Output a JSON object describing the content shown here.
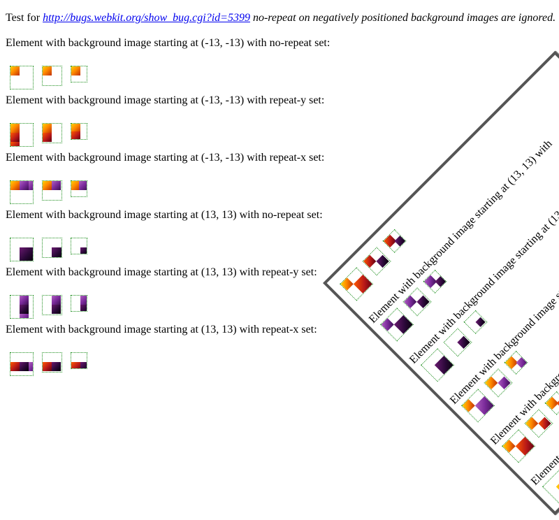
{
  "intro": {
    "prefix": "Test for ",
    "link": "http://bugs.webkit.org/show_bug.cgi?id=5399",
    "suffix": " no-repeat on negatively positioned background images are ignored."
  },
  "cases": [
    {
      "title": "Element with background image starting at (-13, -13) with no-repeat set:"
    },
    {
      "title": "Element with background image starting at (-13, -13) with repeat-y set:"
    },
    {
      "title": "Element with background image starting at (-13, -13) with repeat-x set:"
    },
    {
      "title": "Element with background image starting at (13, 13) with no-repeat set:"
    },
    {
      "title": "Element with background image starting at (13, 13) with repeat-y set:"
    },
    {
      "title": "Element with background image starting at (13, 13) with repeat-x set:"
    }
  ],
  "rotated": {
    "lines": [
      "Element w",
      "Element with backgrou",
      "Element with background image sta",
      "Element with background image starting at (13, 13",
      "Element with background image starting at (13, 13) with"
    ]
  },
  "colors": {
    "border_dotted": "#1f8f1f",
    "link": "#0000ee",
    "frame": "#555555"
  }
}
